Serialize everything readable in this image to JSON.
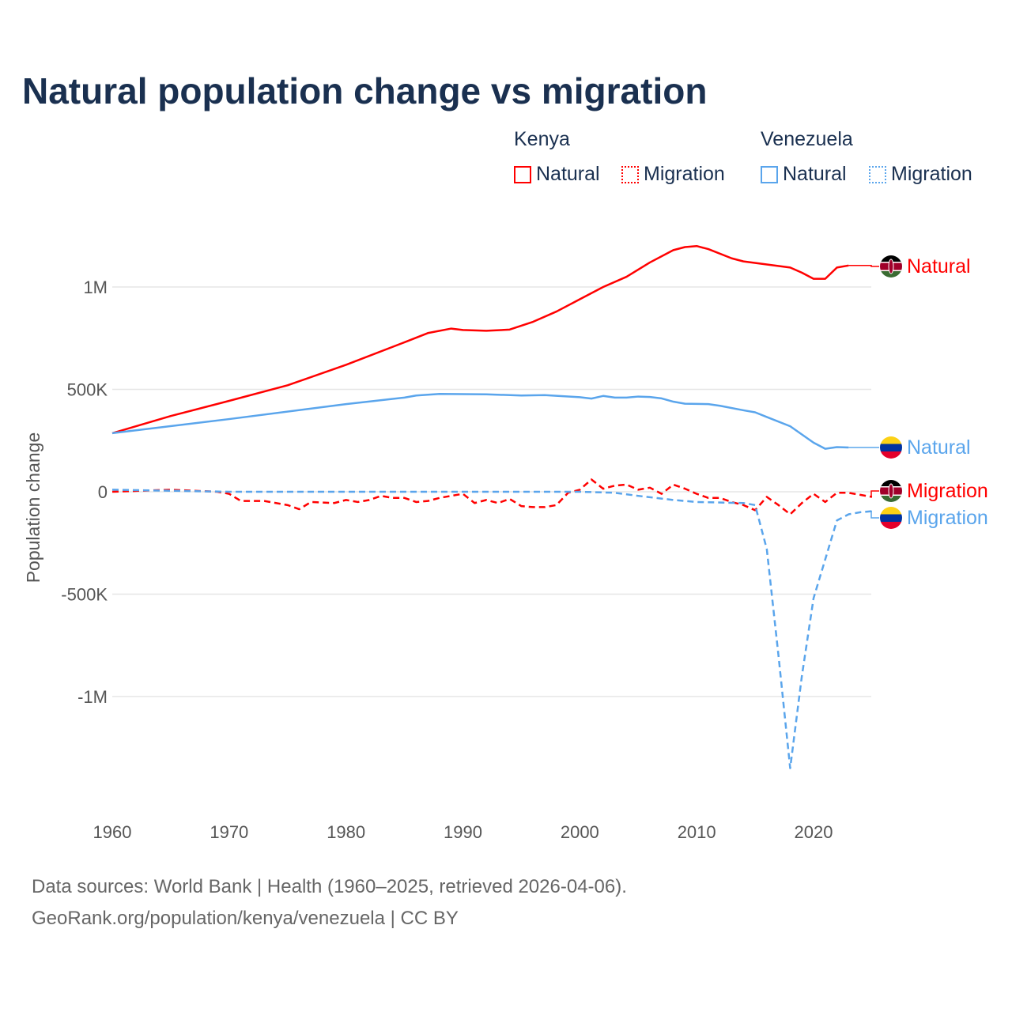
{
  "title": "Natural population change vs migration",
  "legend": {
    "groups": [
      {
        "name": "Kenya",
        "items": [
          "Natural",
          "Migration"
        ]
      },
      {
        "name": "Venezuela",
        "items": [
          "Natural",
          "Migration"
        ]
      }
    ]
  },
  "colors": {
    "kenya": "#ff0000",
    "venezuela": "#5aa5ec",
    "grid": "#e6e6e6",
    "title": "#1a3050"
  },
  "footer": {
    "line1": "Data sources: World Bank | Health (1960–2025, retrieved 2026-04-06).",
    "line2": "GeoRank.org/population/kenya/venezuela | CC BY"
  },
  "chart_data": {
    "type": "line",
    "title": "Natural population change vs migration",
    "ylabel": "Population change",
    "xlabel": "",
    "xlim": [
      1960,
      2025
    ],
    "ylim": [
      -1400000,
      1250000
    ],
    "xticks": [
      1960,
      1970,
      1980,
      1990,
      2000,
      2010,
      2020
    ],
    "yticks": [
      {
        "v": 1000000,
        "label": "1M"
      },
      {
        "v": 500000,
        "label": "500K"
      },
      {
        "v": 0,
        "label": "0"
      },
      {
        "v": -500000,
        "label": "-500K"
      },
      {
        "v": -1000000,
        "label": "-1M"
      }
    ],
    "grid": true,
    "series": [
      {
        "name": "Kenya Natural",
        "label": "Natural",
        "country": "kenya",
        "style": "solid",
        "x": [
          1960,
          1965,
          1970,
          1975,
          1980,
          1985,
          1987,
          1989,
          1990,
          1992,
          1994,
          1996,
          1998,
          2000,
          2002,
          2004,
          2006,
          2008,
          2009,
          2010,
          2011,
          2013,
          2014,
          2016,
          2018,
          2019,
          2020,
          2021,
          2022,
          2023
        ],
        "y": [
          286000,
          370000,
          444000,
          520000,
          620000,
          730000,
          775000,
          797000,
          790000,
          786000,
          792000,
          830000,
          880000,
          940000,
          1000000,
          1050000,
          1120000,
          1180000,
          1195000,
          1200000,
          1185000,
          1140000,
          1125000,
          1110000,
          1095000,
          1070000,
          1040000,
          1040000,
          1095000,
          1105000
        ]
      },
      {
        "name": "Venezuela Natural",
        "label": "Natural",
        "country": "venezuela",
        "style": "solid",
        "x": [
          1960,
          1970,
          1980,
          1985,
          1986,
          1988,
          1992,
          1995,
          1997,
          2000,
          2001,
          2002,
          2003,
          2004,
          2005,
          2006,
          2007,
          2008,
          2009,
          2011,
          2012,
          2014,
          2015,
          2016,
          2018,
          2019,
          2020,
          2021,
          2022,
          2023
        ],
        "y": [
          286000,
          355000,
          428000,
          460000,
          470000,
          478000,
          476000,
          470000,
          472000,
          462000,
          455000,
          468000,
          460000,
          460000,
          465000,
          463000,
          456000,
          440000,
          430000,
          428000,
          420000,
          398000,
          388000,
          365000,
          320000,
          280000,
          240000,
          210000,
          218000,
          216000
        ]
      },
      {
        "name": "Kenya Migration",
        "label": "Migration",
        "country": "kenya",
        "style": "dashed",
        "x": [
          1960,
          1965,
          1969,
          1970,
          1971,
          1973,
          1975,
          1976,
          1977,
          1979,
          1980,
          1981,
          1982,
          1983,
          1984,
          1985,
          1986,
          1987,
          1988,
          1989,
          1990,
          1991,
          1992,
          1993,
          1994,
          1995,
          1996,
          1997,
          1998,
          1999,
          2000,
          2001,
          2002,
          2003,
          2004,
          2005,
          2006,
          2007,
          2008,
          2009,
          2010,
          2011,
          2012,
          2013,
          2014,
          2015,
          2016,
          2017,
          2018,
          2019,
          2020,
          2021,
          2022,
          2023,
          2024,
          2025
        ],
        "y": [
          0,
          10000,
          0,
          -10000,
          -45000,
          -45000,
          -65000,
          -85000,
          -50000,
          -55000,
          -40000,
          -50000,
          -40000,
          -20000,
          -30000,
          -30000,
          -50000,
          -45000,
          -30000,
          -20000,
          -10000,
          -55000,
          -40000,
          -55000,
          -35000,
          -70000,
          -75000,
          -75000,
          -65000,
          -5000,
          10000,
          60000,
          15000,
          30000,
          35000,
          10000,
          20000,
          -10000,
          35000,
          15000,
          -10000,
          -30000,
          -30000,
          -50000,
          -65000,
          -90000,
          -25000,
          -65000,
          -110000,
          -55000,
          -10000,
          -50000,
          -5000,
          -5000,
          -15000,
          -25000
        ]
      },
      {
        "name": "Venezuela Migration",
        "label": "Migration",
        "country": "venezuela",
        "style": "dashed",
        "x": [
          1960,
          1965,
          1970,
          1980,
          1990,
          2000,
          2003,
          2005,
          2008,
          2010,
          2014,
          2015,
          2016,
          2017,
          2018,
          2019,
          2020,
          2021,
          2022,
          2023,
          2024,
          2025
        ],
        "y": [
          10000,
          5000,
          0,
          0,
          0,
          0,
          -5000,
          -20000,
          -40000,
          -50000,
          -55000,
          -65000,
          -280000,
          -800000,
          -1350000,
          -900000,
          -520000,
          -330000,
          -140000,
          -110000,
          -100000,
          -95000
        ]
      }
    ]
  }
}
